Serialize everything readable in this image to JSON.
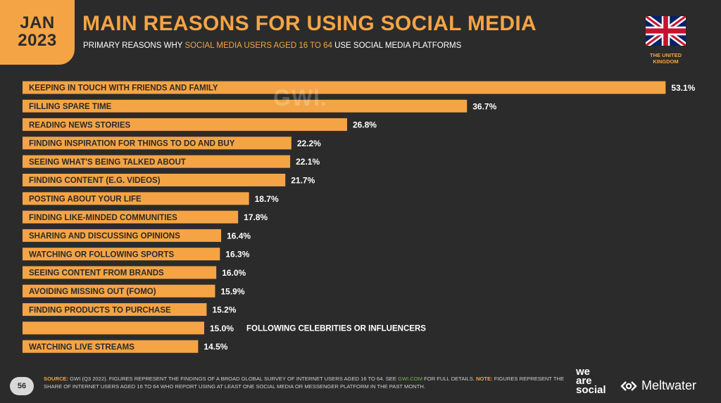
{
  "badge": {
    "month": "JAN",
    "year": "2023"
  },
  "header": {
    "title": "MAIN REASONS FOR USING SOCIAL MEDIA",
    "subtitle_pre": "PRIMARY REASONS WHY ",
    "subtitle_highlight": "SOCIAL MEDIA USERS AGED 16 TO 64",
    "subtitle_post": " USE SOCIAL MEDIA PLATFORMS"
  },
  "country": {
    "line1": "THE UNITED",
    "line2": "KINGDOM",
    "flag": "uk-flag-icon"
  },
  "watermark": "GWI.",
  "footer": {
    "page_number": "56",
    "source_label": "SOURCE:",
    "source_text": " GWI (Q3 2022). FIGURES REPRESENT THE FINDINGS OF A BROAD GLOBAL SURVEY OF INTERNET USERS AGED 16 TO 64. SEE ",
    "source_link": "GWI.COM",
    "source_text2": " FOR FULL DETAILS. ",
    "note_label": "NOTE:",
    "note_text": " FIGURES REPRESENT THE SHARE OF INTERNET USERS AGED 16 TO 64 WHO REPORT USING AT LEAST ONE SOCIAL MEDIA OR MESSENGER PLATFORM IN THE PAST MONTH.",
    "brand1_l1": "we",
    "brand1_l2": "are",
    "brand1_l3": "social",
    "brand2": "Meltwater"
  },
  "colors": {
    "accent": "#f5a445",
    "background": "#2b2b2b",
    "text": "#ffffff"
  },
  "chart_data": {
    "type": "bar",
    "orientation": "horizontal",
    "categories": [
      "KEEPING IN TOUCH WITH FRIENDS AND FAMILY",
      "FILLING SPARE TIME",
      "READING NEWS STORIES",
      "FINDING INSPIRATION FOR THINGS TO DO AND BUY",
      "SEEING WHAT'S BEING TALKED ABOUT",
      "FINDING CONTENT (E.G. VIDEOS)",
      "POSTING ABOUT YOUR LIFE",
      "FINDING LIKE-MINDED COMMUNITIES",
      "SHARING AND DISCUSSING OPINIONS",
      "WATCHING OR FOLLOWING SPORTS",
      "SEEING CONTENT FROM BRANDS",
      "AVOIDING MISSING OUT (FOMO)",
      "FINDING PRODUCTS TO PURCHASE",
      "FOLLOWING CELEBRITIES OR INFLUENCERS",
      "WATCHING LIVE STREAMS"
    ],
    "values": [
      53.1,
      36.7,
      26.8,
      22.2,
      22.1,
      21.7,
      18.7,
      17.8,
      16.4,
      16.3,
      16.0,
      15.9,
      15.2,
      15.0,
      14.5
    ],
    "value_labels": [
      "53.1%",
      "36.7%",
      "26.8%",
      "22.2%",
      "22.1%",
      "21.7%",
      "18.7%",
      "17.8%",
      "16.4%",
      "16.3%",
      "16.0%",
      "15.9%",
      "15.2%",
      "15.0%",
      "14.5%"
    ],
    "unit": "%",
    "bar_color": "#f5a445"
  }
}
